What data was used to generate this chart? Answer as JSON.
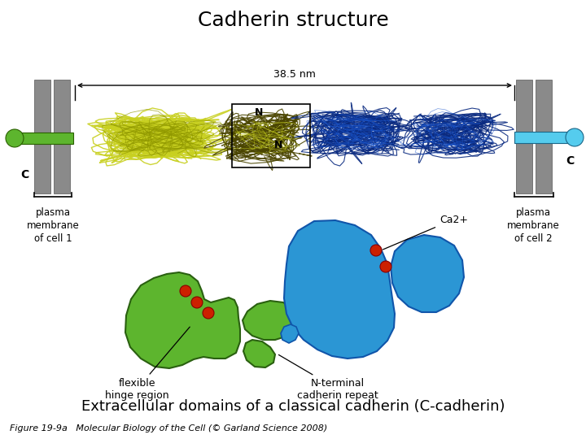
{
  "title": "Cadherin structure",
  "subtitle": "Extracellular domains of a classical cadherin (C-cadherin)",
  "caption": "Figure 19-9a   Molecular Biology of the Cell (© Garland Science 2008)",
  "nm_label": "38.5 nm",
  "n_label_1": "N",
  "n_label_2": "N",
  "c_label_left": "C",
  "c_label_right": "C",
  "left_mem_lines": [
    "plasma",
    "membrane",
    "of cell 1"
  ],
  "right_mem_lines": [
    "plasma",
    "membrane",
    "of cell 2"
  ],
  "ca2_label": "Ca2+",
  "flex_label": [
    "flexible",
    "hinge region"
  ],
  "nterm_label": [
    "N-terminal",
    "cadherin repeat"
  ],
  "bg": "#ffffff",
  "title_fs": 18,
  "subtitle_fs": 13,
  "caption_fs": 8,
  "gray": "#8a8a8a",
  "dark_gray": "#555555",
  "green": "#5db52e",
  "blue": "#2b96d4",
  "lt_blue": "#55ccee",
  "yg": "#c8d020",
  "dark_yg": "#909800",
  "dark_blue": "#0a2a80",
  "mid_blue": "#1a55cc",
  "red": "#cc2000",
  "box_color": "#000000"
}
